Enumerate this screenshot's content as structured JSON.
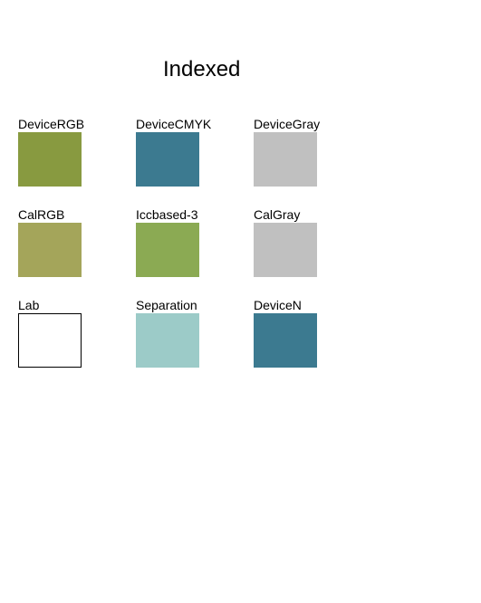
{
  "title": "Indexed",
  "swatches": [
    {
      "label": "DeviceRGB",
      "color": "#889a40",
      "outlined": false
    },
    {
      "label": "DeviceCMYK",
      "color": "#3c7a90",
      "outlined": false
    },
    {
      "label": "DeviceGray",
      "color": "#c0c0c0",
      "outlined": false
    },
    {
      "label": "CalRGB",
      "color": "#a4a55a",
      "outlined": false
    },
    {
      "label": "Iccbased-3",
      "color": "#8baa53",
      "outlined": false
    },
    {
      "label": "CalGray",
      "color": "#c0c0c0",
      "outlined": false
    },
    {
      "label": "Lab",
      "color": "#ffffff",
      "outlined": true
    },
    {
      "label": "Separation",
      "color": "#9ccbc8",
      "outlined": false
    },
    {
      "label": "DeviceN",
      "color": "#3c7a90",
      "outlined": false
    }
  ]
}
